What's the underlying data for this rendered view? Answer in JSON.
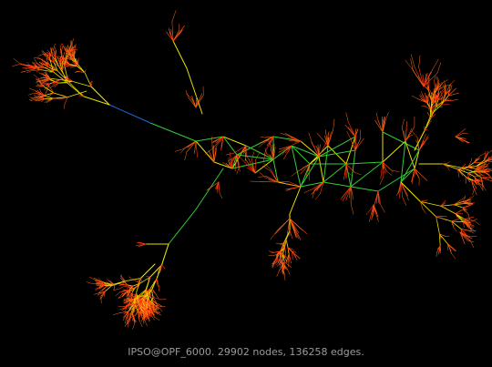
{
  "caption": "IPSO@OPF_6000. 29902 nodes, 136258 edges.",
  "colors": {
    "background": "#000000",
    "caption": "#9a9a9a",
    "edge_long": "#1f6bd6",
    "edge_mid": "#33cc33",
    "edge_short": "#e8e000",
    "leaf_edge": "#ff6a10",
    "leaf_edge_alt": "#ff3a10"
  },
  "legend_note": ""
}
